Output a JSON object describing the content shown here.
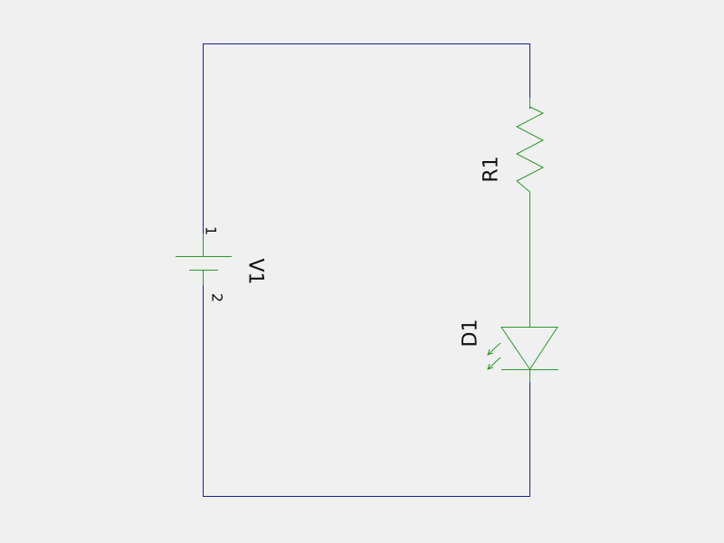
{
  "schematic": {
    "colors": {
      "background": "#f0f0f0",
      "wire": "#1c1c9c",
      "component": "#2a9a2a",
      "text": "#111111"
    },
    "components": {
      "battery": {
        "ref": "V1",
        "pin_positive": "1",
        "pin_negative": "2"
      },
      "resistor": {
        "ref": "R1"
      },
      "led": {
        "ref": "D1"
      }
    }
  }
}
